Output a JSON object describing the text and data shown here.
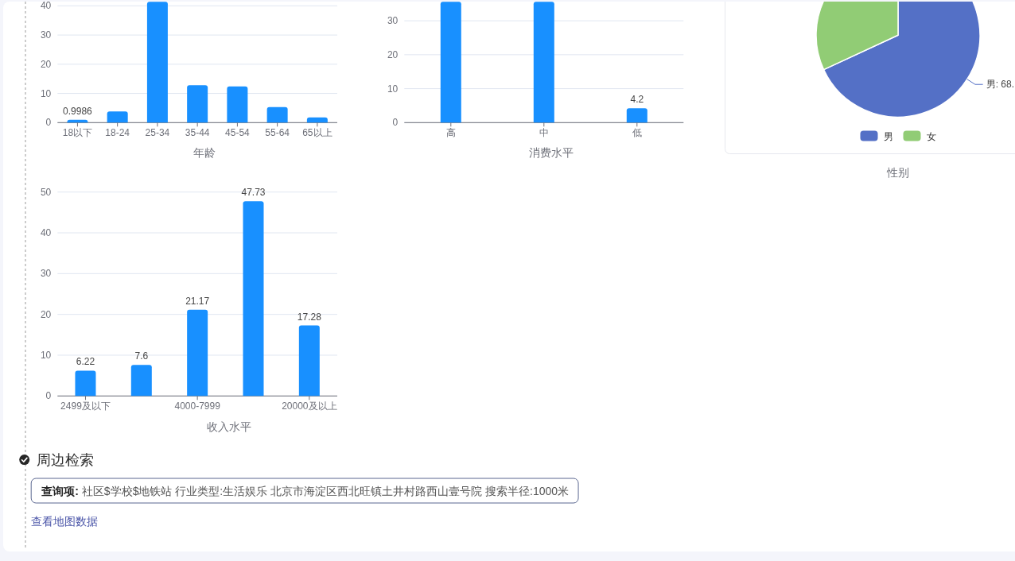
{
  "chart_data": [
    {
      "type": "bar",
      "categories": [
        "18以下",
        "18-24",
        "25-34",
        "35-44",
        "45-54",
        "55-64",
        "65以上"
      ],
      "values": [
        0.9986,
        3.8,
        41.4,
        12.8,
        12.4,
        5.3,
        1.8
      ],
      "value_labels": [
        "0.9986",
        null,
        null,
        null,
        null,
        null,
        null
      ],
      "color": "#1890ff",
      "ylim": [
        0,
        41.4
      ],
      "yticks": [
        0,
        10,
        20,
        30,
        40
      ],
      "grid": "y",
      "xlabel": "年龄"
    },
    {
      "type": "bar",
      "categories": [
        "高",
        "中",
        "低"
      ],
      "values": [
        35.6,
        35.6,
        4.2
      ],
      "value_labels": [
        null,
        null,
        "4.2"
      ],
      "color": "#1890ff",
      "ylim": [
        0,
        35.6
      ],
      "yticks": [
        0,
        10,
        20,
        30
      ],
      "grid": "y",
      "xlabel": "消费水平"
    },
    {
      "type": "pie",
      "categories": [
        "男",
        "女"
      ],
      "values": [
        68.1,
        31.9
      ],
      "colors": [
        "#5470c6",
        "#91cc75"
      ],
      "value_labels": [
        "男: 68.",
        null
      ],
      "legend": "bottom",
      "title": "性别"
    },
    {
      "type": "bar",
      "categories": [
        "2499及以下",
        null,
        "4000-7999",
        null,
        "20000及以上"
      ],
      "values": [
        6.22,
        7.6,
        21.17,
        47.73,
        17.28
      ],
      "data_labels": true,
      "color": "#1890ff",
      "ylim": [
        0,
        50
      ],
      "yticks": [
        0,
        10,
        20,
        30,
        40,
        50
      ],
      "grid": "y",
      "xlabel": "收入水平"
    },
    {
      "type": "other",
      "title": "周边检索",
      "annotations": [
        "查询项:",
        "社区$学校$地铁站 行业类型:生活娱乐 北京市海淀区西北旺镇土井村路西山壹号院 搜索半径:1000米",
        "查看地图数据"
      ]
    }
  ]
}
